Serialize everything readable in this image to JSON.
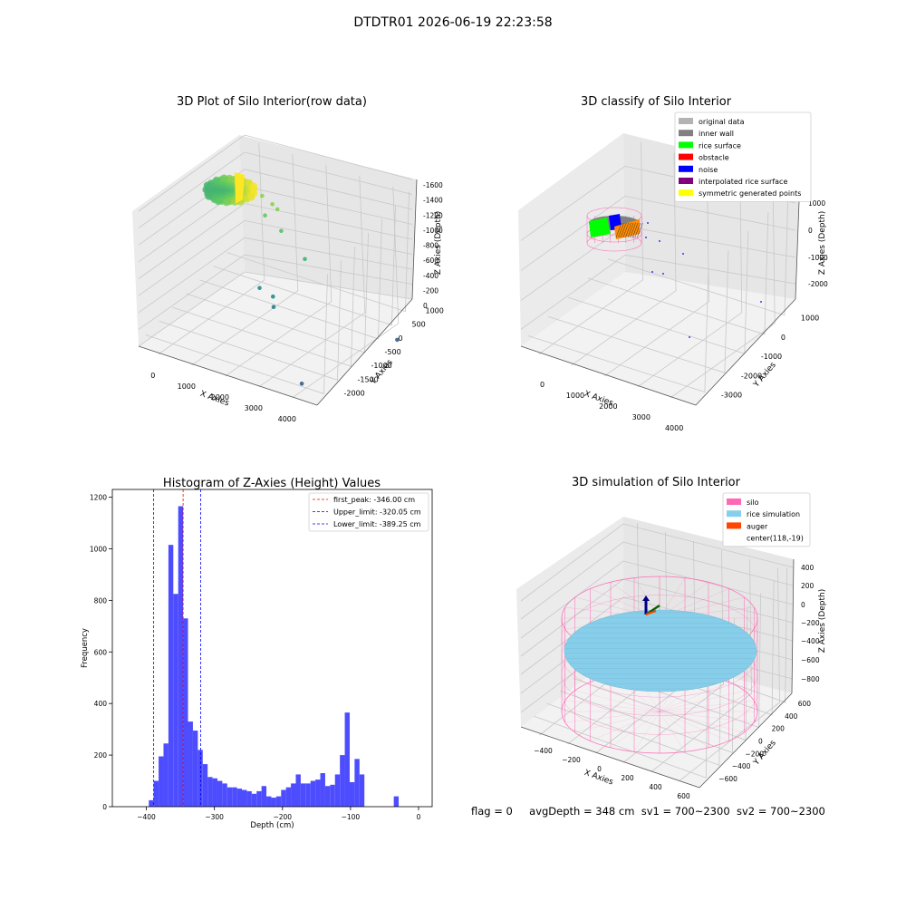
{
  "suptitle": "DTDTR01 2026-06-19 22:23:58",
  "footer": {
    "flag": "flag = 0",
    "avgDepth": "avgDepth = 348 cm",
    "sv1": "sv1 = 700~2300",
    "sv2": "sv2 = 700~2300"
  },
  "chart_data": [
    {
      "type": "scatter",
      "projection": "3d",
      "title": "3D Plot of Silo Interior(row data)",
      "xlabel": "X Axies",
      "ylabel": "Y Axies",
      "zlabel": "Z Axies (Depth)",
      "xticks": [
        "0",
        "1000",
        "2000",
        "3000",
        "4000"
      ],
      "yticks": [
        "-2000",
        "-1500",
        "-1000",
        "-500",
        "0",
        "500",
        "1000"
      ],
      "zticks": [
        "-1600",
        "-1400",
        "-1200",
        "-1000",
        "-800",
        "-600",
        "-400",
        "-200",
        "0"
      ],
      "grid": true,
      "colormap": "viridis by depth",
      "series": [
        {
          "points": [
            {
              "x": 1200,
              "y": 200,
              "z": -200
            },
            {
              "x": 1500,
              "y": 100,
              "z": -220
            },
            {
              "x": 1650,
              "y": 50,
              "z": -240
            },
            {
              "x": 1300,
              "y": 150,
              "z": -400
            },
            {
              "x": 1700,
              "y": 100,
              "z": -500
            },
            {
              "x": 2300,
              "y": 0,
              "z": -700
            },
            {
              "x": 1500,
              "y": -300,
              "z": -1100
            },
            {
              "x": 1800,
              "y": -300,
              "z": -1150
            },
            {
              "x": 1850,
              "y": -350,
              "z": -1250
            },
            {
              "x": 3800,
              "y": 800,
              "z": -1600
            },
            {
              "x": 3300,
              "y": -1500,
              "z": -1600
            }
          ]
        }
      ]
    },
    {
      "type": "scatter",
      "projection": "3d",
      "title": "3D classify of Silo Interior",
      "xlabel": "X Axies",
      "ylabel": "Y Axies",
      "zlabel": "Z Axies (Depth)",
      "xticks": [
        "0",
        "1000",
        "2000",
        "3000",
        "4000"
      ],
      "yticks": [
        "-3000",
        "-2000",
        "-1000",
        "0",
        "1000"
      ],
      "zticks": [
        "-2000",
        "-1000",
        "0",
        "1000"
      ],
      "grid": true,
      "legend": {
        "placement": "upper-right",
        "entries": [
          {
            "label": "original data",
            "color": "#b3b3b3"
          },
          {
            "label": "inner wall",
            "color": "#808080"
          },
          {
            "label": "rice surface",
            "color": "#00ff00"
          },
          {
            "label": "obstacle",
            "color": "#ff0000"
          },
          {
            "label": "noise",
            "color": "#0000ff"
          },
          {
            "label": "interpolated rice surface",
            "color": "#800080"
          },
          {
            "label": "symmetric generated points",
            "color": "#ffff00"
          }
        ]
      }
    },
    {
      "type": "bar",
      "title": "Histogram of Z-Axies (Height) Values",
      "xlabel": "Depth (cm)",
      "ylabel": "Frequency",
      "xlim": [
        -450,
        20
      ],
      "ylim": [
        0,
        1230
      ],
      "xticks": [
        -400,
        -300,
        -200,
        -100,
        0
      ],
      "xtick_labels": [
        "−400",
        "−300",
        "−200",
        "−100",
        "0"
      ],
      "yticks": [
        0,
        200,
        400,
        600,
        800,
        1000,
        1200
      ],
      "bar_color": "#4d4dff",
      "bin_width": 7.2,
      "bins_start": [
        -396.4,
        -389.2,
        -382.0,
        -374.8,
        -367.6,
        -360.4,
        -353.2,
        -346.0,
        -338.8,
        -331.6,
        -324.4,
        -317.2,
        -310.0,
        -302.8,
        -295.6,
        -288.4,
        -281.2,
        -274.0,
        -266.8,
        -259.6,
        -252.4,
        -245.2,
        -238.0,
        -230.8,
        -223.6,
        -216.4,
        -209.2,
        -202.0,
        -194.8,
        -187.6,
        -180.4,
        -173.2,
        -166.0,
        -158.8,
        -151.6,
        -144.4,
        -137.2,
        -130.0,
        -122.8,
        -115.6,
        -108.4,
        -101.2,
        -94.0,
        -86.8,
        -79.6,
        -72.4,
        -65.2,
        -58.0,
        -50.8,
        -43.6,
        -36.4,
        -29.2,
        -22.0,
        -14.8,
        -7.6,
        -0.4
      ],
      "values": [
        25,
        100,
        195,
        245,
        1015,
        825,
        1165,
        730,
        330,
        295,
        220,
        165,
        115,
        110,
        100,
        90,
        75,
        75,
        70,
        65,
        60,
        50,
        60,
        80,
        40,
        35,
        40,
        65,
        75,
        90,
        125,
        90,
        90,
        100,
        105,
        130,
        80,
        85,
        125,
        200,
        365,
        95,
        185,
        125,
        0,
        0,
        0,
        0,
        0,
        0,
        40,
        0,
        0,
        0,
        0,
        0
      ],
      "vlines": [
        {
          "x": -346.0,
          "color": "#ff0000",
          "label": "first_peak: -346.00 cm"
        },
        {
          "x": -320.05,
          "color": "#0000ff",
          "label": "Upper_limit: -320.05 cm"
        },
        {
          "x": -389.25,
          "color": "#0000ff",
          "label": "Lower_limit: -389.25 cm"
        }
      ],
      "legend": {
        "placement": "upper-right"
      }
    },
    {
      "type": "scatter",
      "projection": "3d",
      "title": "3D simulation of Silo Interior",
      "xlabel": "X Axies",
      "ylabel": "Y Axies",
      "zlabel": "Z Axies (Depth)",
      "xticks": [
        "−400",
        "−200",
        "0",
        "200",
        "400",
        "600"
      ],
      "yticks": [
        "−600",
        "−400",
        "−200",
        "0",
        "200",
        "400",
        "600"
      ],
      "zticks": [
        "−800",
        "−600",
        "−400",
        "−200",
        "0",
        "200",
        "400"
      ],
      "grid": true,
      "legend": {
        "placement": "upper-right",
        "entries": [
          {
            "label": "silo",
            "color": "#ff69b4"
          },
          {
            "label": "rice simulation",
            "color": "#87ceeb"
          },
          {
            "label": "auger",
            "color": "#ff4500"
          },
          {
            "label": "center(118,-19)",
            "color": "none"
          }
        ]
      }
    }
  ]
}
